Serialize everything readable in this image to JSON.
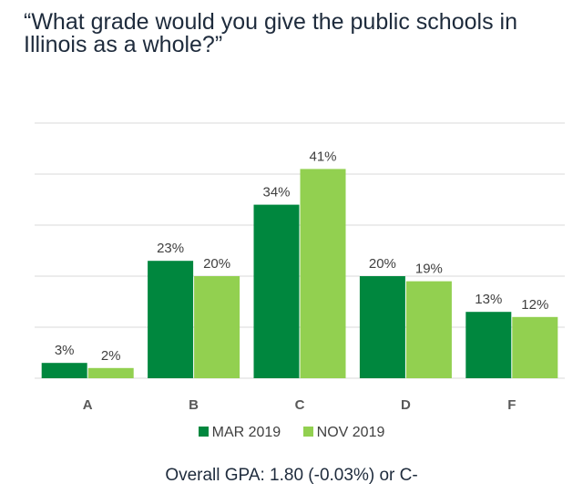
{
  "title": "“What grade would you give the public schools in Illinois as a whole?”",
  "chart_data": {
    "type": "bar",
    "categories": [
      "A",
      "B",
      "C",
      "D",
      "F"
    ],
    "series": [
      {
        "name": "MAR 2019",
        "values": [
          3,
          23,
          34,
          20,
          13
        ],
        "labels": [
          "3%",
          "23%",
          "34%",
          "20%",
          "13%"
        ],
        "color": "#00873E"
      },
      {
        "name": "NOV 2019",
        "values": [
          2,
          20,
          41,
          19,
          12
        ],
        "labels": [
          "2%",
          "20%",
          "41%",
          "19%",
          "12%"
        ],
        "color": "#92D050"
      }
    ],
    "ylim": [
      0,
      50
    ],
    "grid": true,
    "legend": "bottom",
    "xlabel": "",
    "ylabel": ""
  },
  "footer": "Overall GPA: 1.80 (-0.03%) or C-"
}
